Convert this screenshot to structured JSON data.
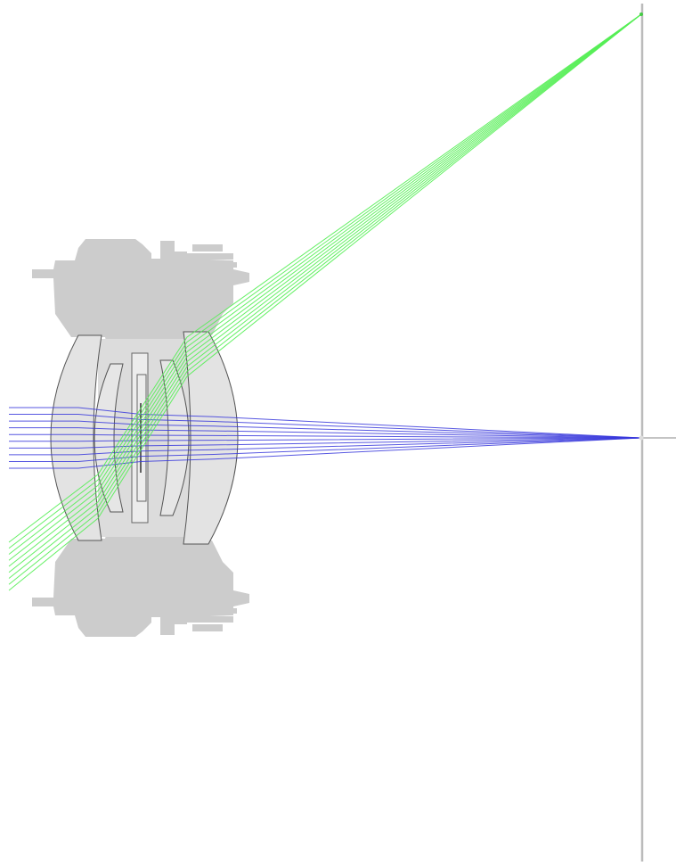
{
  "colors": {
    "background": "#ffffff",
    "housing": "#cccccc",
    "lens_glass": "#e3e3e3",
    "lens_edge": "#555555",
    "axial_rays": "#3a3adc",
    "offaxis_rays": "#55ee55",
    "image_plane": "#bbbbbb",
    "optical_axis": "#888888"
  },
  "rays": {
    "axial_count": 10,
    "offaxis_count": 9
  }
}
